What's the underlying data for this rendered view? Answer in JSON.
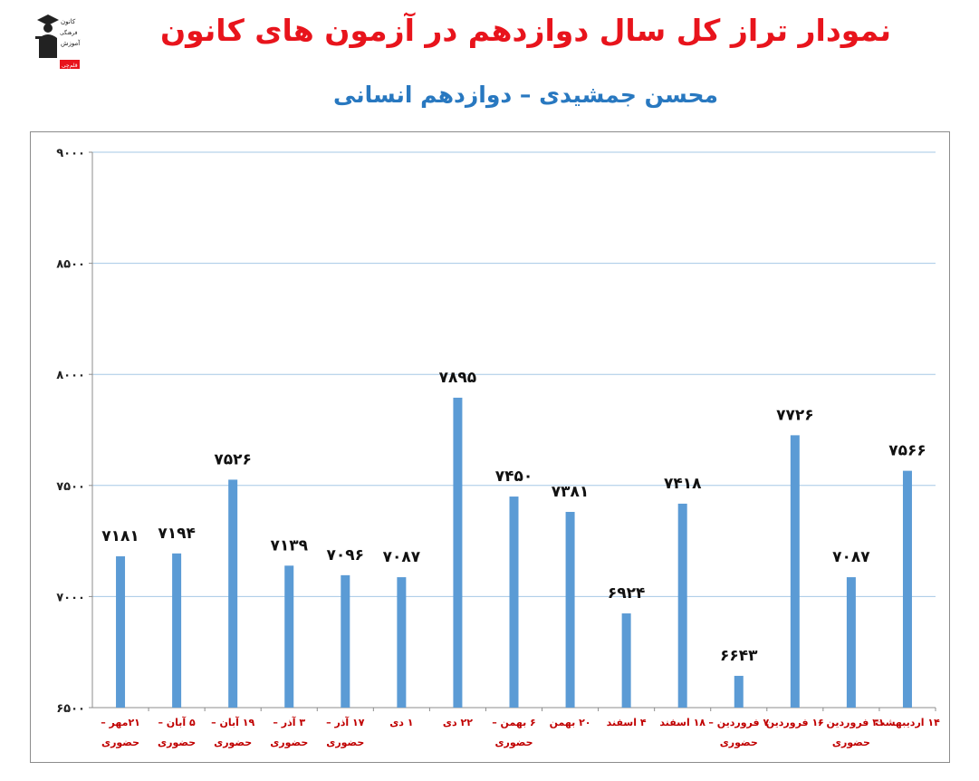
{
  "header": {
    "title": "نمودار تراز کل سال دوازدهم در آزمون های کانون",
    "subtitle": "محسن جمشیدی – دوازدهم انسانی",
    "logo_text": [
      "کانون",
      "فرهنگی",
      "آموزش",
      "قلم‌چی"
    ]
  },
  "colors": {
    "bar": "#5b9bd5",
    "title": "#e8141c",
    "subtitle": "#2878c0",
    "category_label": "#c00000",
    "grid": "#a6c8e6"
  },
  "chart_data": {
    "type": "bar",
    "title": "نمودار تراز کل سال دوازدهم در آزمون های کانون",
    "subtitle": "محسن جمشیدی – دوازدهم انسانی",
    "categories": [
      [
        "۲۱مهر –",
        "حضوری"
      ],
      [
        "۵ آبان –",
        "حضوری"
      ],
      [
        "۱۹ آبان –",
        "حضوری"
      ],
      [
        "۳ آذر –",
        "حضوری"
      ],
      [
        "۱۷ آذر –",
        "حضوری"
      ],
      [
        "۱ دی"
      ],
      [
        "۲۲ دی"
      ],
      [
        "۶ بهمن –",
        "حضوری"
      ],
      [
        "۲۰ بهمن"
      ],
      [
        "۴ اسفند"
      ],
      [
        "۱۸ اسفند"
      ],
      [
        "۷ فروردین –",
        "حضوری"
      ],
      [
        "۱۶ فروردین"
      ],
      [
        "۳۱ فروردین –",
        "حضوری"
      ],
      [
        "۱۴ اردیبهشت"
      ]
    ],
    "values": [
      7181,
      7194,
      7526,
      7139,
      7096,
      7087,
      7895,
      7450,
      7381,
      6924,
      7418,
      6643,
      7726,
      7087,
      7566
    ],
    "value_labels": [
      "۷۱۸۱",
      "۷۱۹۴",
      "۷۵۲۶",
      "۷۱۳۹",
      "۷۰۹۶",
      "۷۰۸۷",
      "۷۸۹۵",
      "۷۴۵۰",
      "۷۳۸۱",
      "۶۹۲۴",
      "۷۴۱۸",
      "۶۶۴۳",
      "۷۷۲۶",
      "۷۰۸۷",
      "۷۵۶۶"
    ],
    "ylim": [
      6500,
      9000
    ],
    "yticks": [
      6500,
      7000,
      7500,
      8000,
      8500,
      9000
    ],
    "ytick_labels": [
      "۶۵۰۰",
      "۷۰۰۰",
      "۷۵۰۰",
      "۸۰۰۰",
      "۸۵۰۰",
      "۹۰۰۰"
    ],
    "xlabel": "",
    "ylabel": "",
    "grid": true,
    "legend": "none"
  }
}
